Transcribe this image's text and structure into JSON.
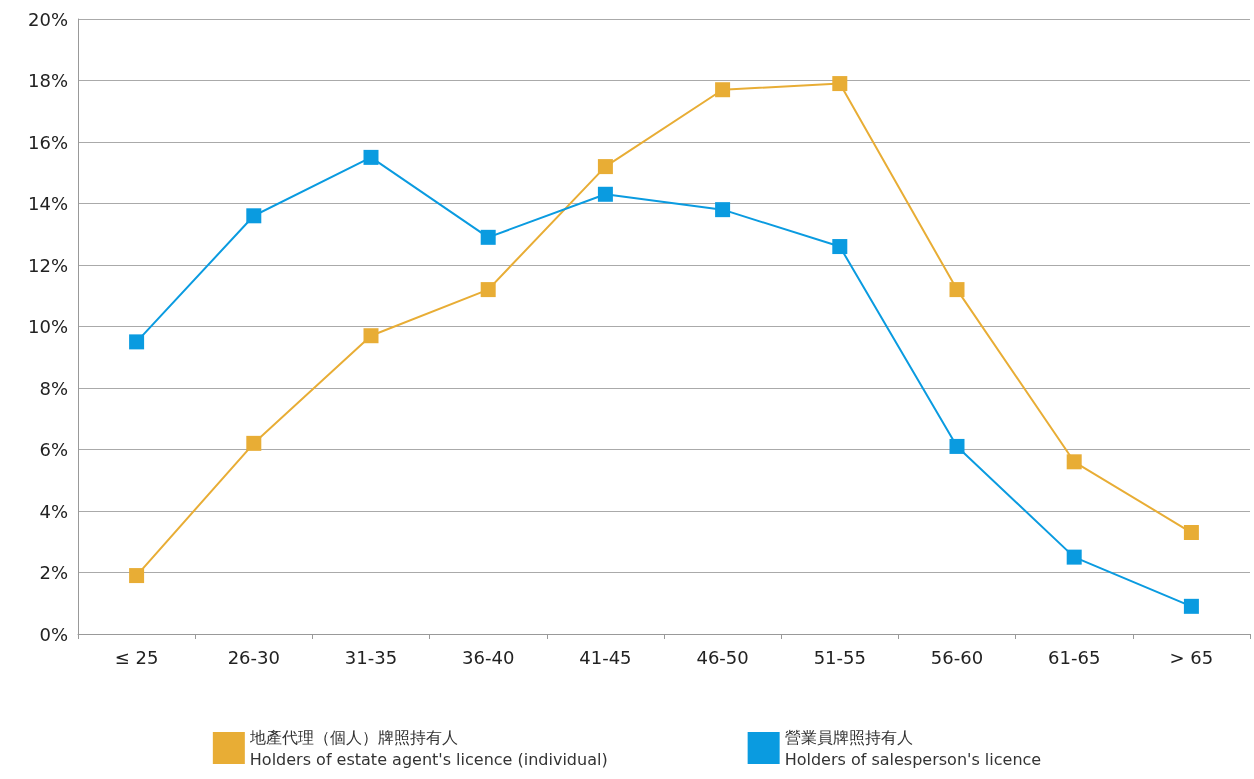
{
  "chart_data": {
    "type": "line",
    "categories": [
      "≤ 25",
      "26-30",
      "31-35",
      "36-40",
      "41-45",
      "46-50",
      "51-55",
      "56-60",
      "61-65",
      "> 65"
    ],
    "series": [
      {
        "name": "地產代理（個人）牌照持有人\nHolders of estate agent's licence (individual)",
        "color": "#e8ad35",
        "values": [
          1.9,
          6.2,
          9.7,
          11.2,
          15.2,
          17.7,
          17.9,
          11.2,
          5.6,
          3.3
        ]
      },
      {
        "name": "營業員牌照持有人\nHolders of salesperson's licence",
        "color": "#0a9be0",
        "values": [
          9.5,
          13.6,
          15.5,
          12.9,
          14.3,
          13.8,
          12.6,
          6.1,
          2.5,
          0.9
        ]
      }
    ],
    "ylim": [
      0,
      20
    ],
    "yticks": [
      {
        "value": 0,
        "label": "0%"
      },
      {
        "value": 2,
        "label": "2%"
      },
      {
        "value": 4,
        "label": "4%"
      },
      {
        "value": 6,
        "label": "6%"
      },
      {
        "value": 8,
        "label": "8%"
      },
      {
        "value": 10,
        "label": "10%"
      },
      {
        "value": 12,
        "label": "12%"
      },
      {
        "value": 14,
        "label": "14%"
      },
      {
        "value": 16,
        "label": "16%"
      },
      {
        "value": 18,
        "label": "18%"
      },
      {
        "value": 20,
        "label": "20%"
      }
    ],
    "grid": "y",
    "legend": "bottom",
    "marker": "square",
    "line_style": "solid"
  }
}
